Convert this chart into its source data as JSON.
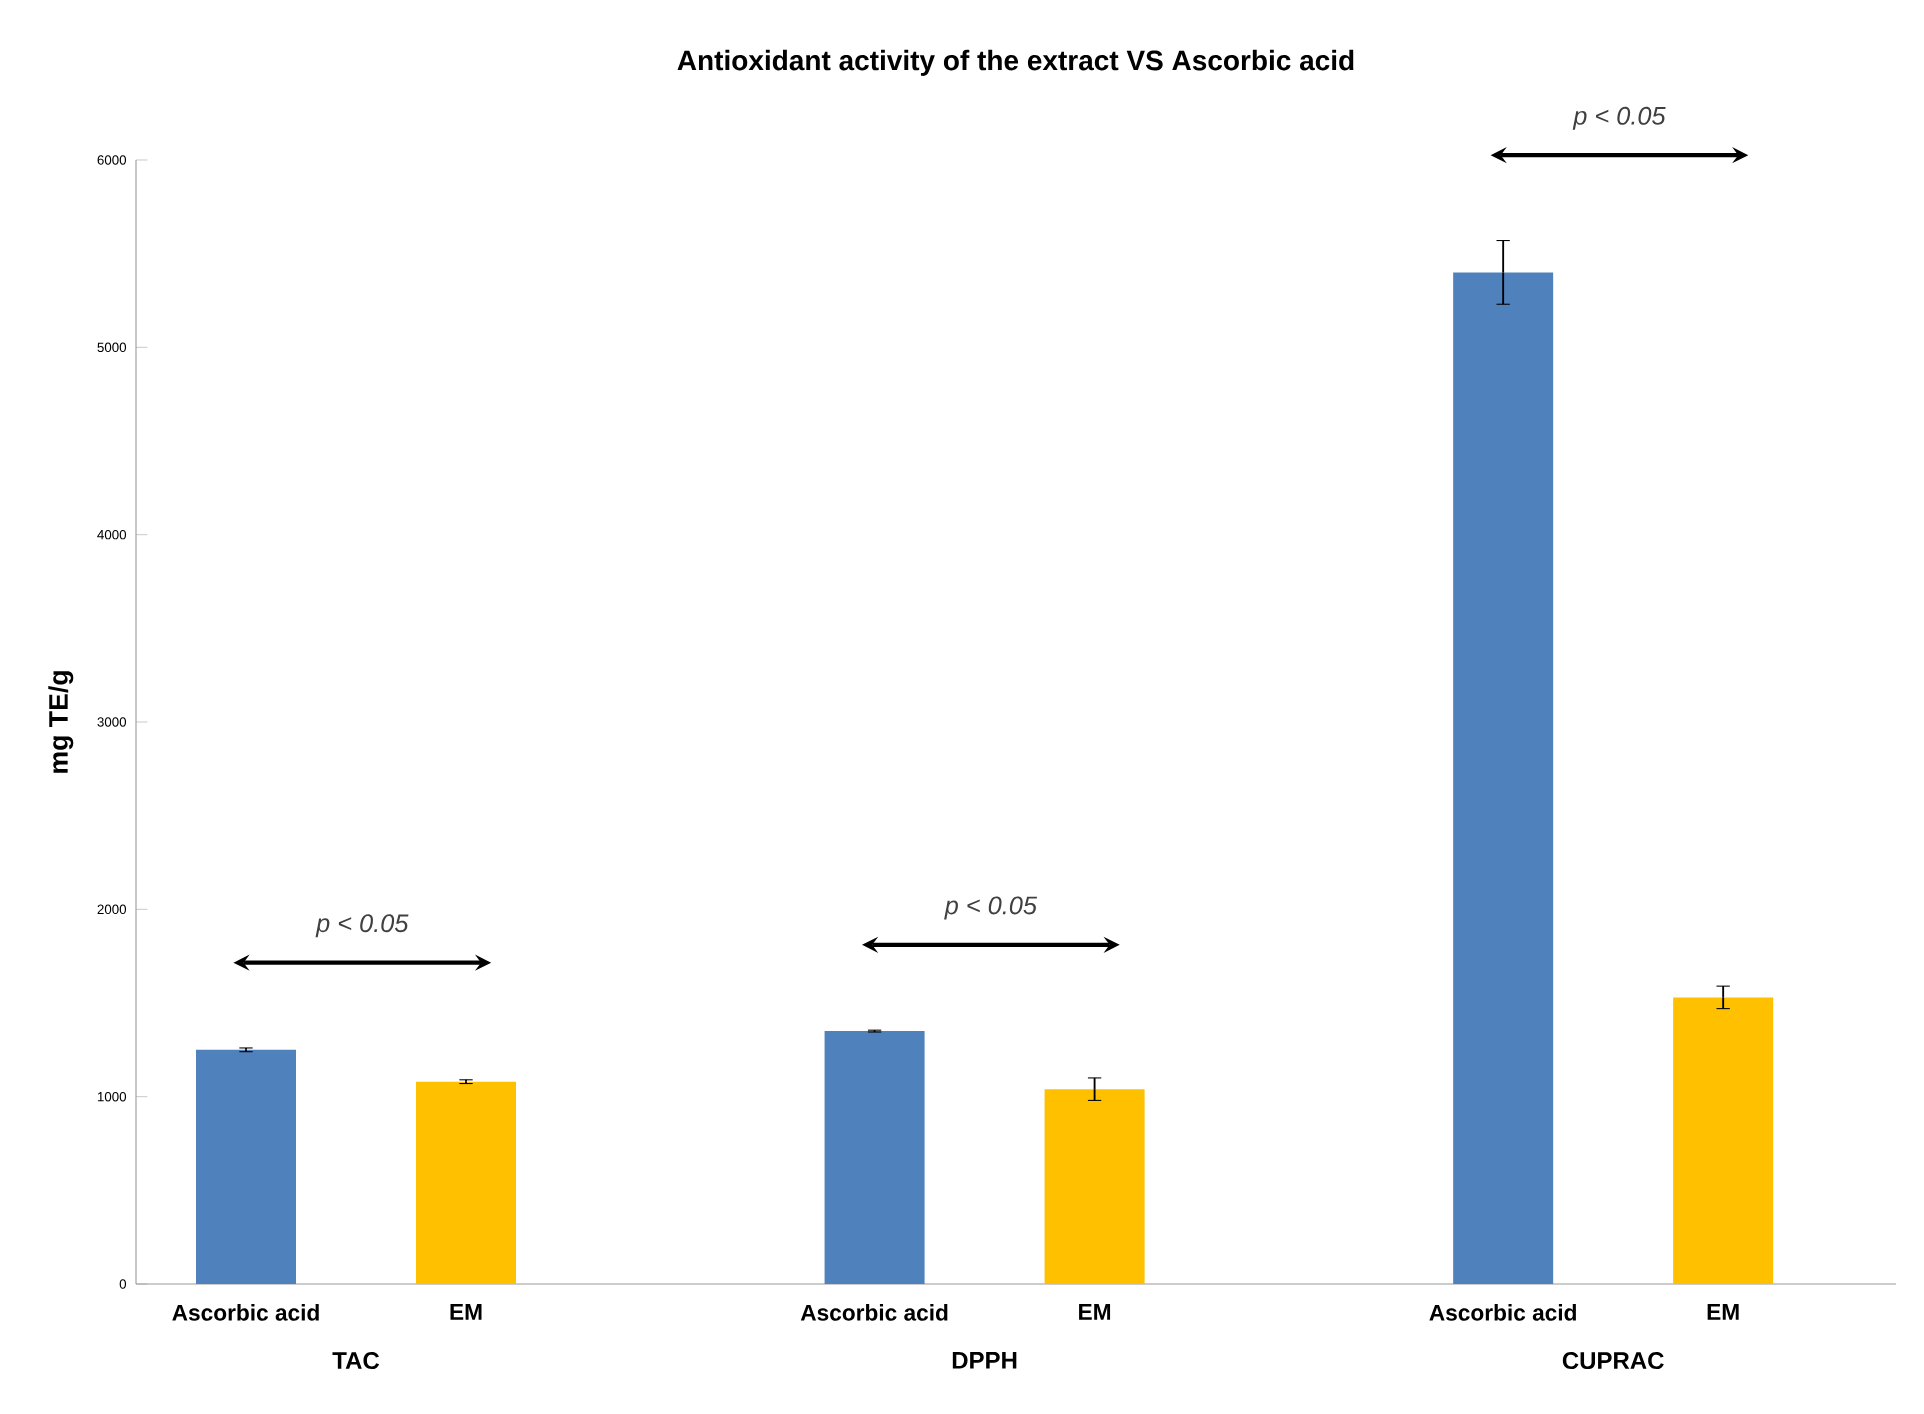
{
  "chart_data": {
    "type": "bar",
    "title": "Antioxidant activity of the extract VS Ascorbic acid",
    "ylabel": "mg TE/g",
    "categories": [
      "TAC",
      "DPPH",
      "CUPRAC"
    ],
    "series": [
      {
        "name": "Ascorbic acid",
        "color": "#4f81bd",
        "values": [
          1250,
          1350,
          5400
        ],
        "errors": [
          10,
          5,
          170
        ]
      },
      {
        "name": "EM",
        "color": "#ffc000",
        "values": [
          1080,
          1040,
          1530
        ],
        "errors": [
          10,
          60,
          60
        ]
      }
    ],
    "ylim": [
      0,
      6000
    ],
    "yticks": [
      0,
      1000,
      2000,
      3000,
      4000,
      5000,
      6000
    ],
    "annotations": [
      "p < 0.05",
      "p < 0.05",
      "p < 0.05"
    ]
  }
}
